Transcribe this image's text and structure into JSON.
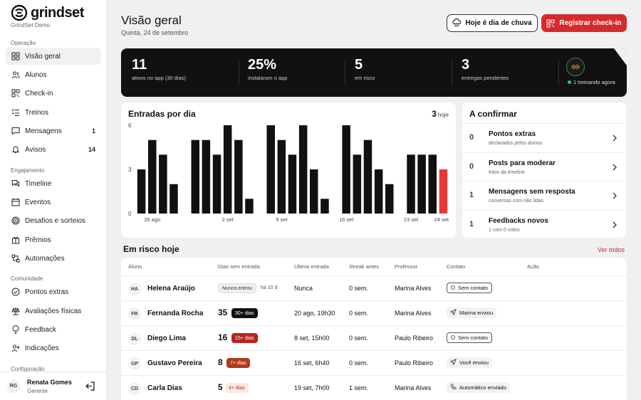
{
  "brand": {
    "name": "grindset",
    "sub": "GrindSet Demo"
  },
  "sidebar": {
    "sections": [
      "Operação",
      "Engajamento",
      "Comunidade",
      "Configuração"
    ],
    "items": [
      {
        "label": "Visão geral",
        "icon": "grid-icon"
      },
      {
        "label": "Alunos",
        "icon": "users-icon"
      },
      {
        "label": "Check-in",
        "icon": "qr-icon"
      },
      {
        "label": "Treinos",
        "icon": "list-icon"
      },
      {
        "label": "Mensagens",
        "icon": "message-icon",
        "count": "1"
      },
      {
        "label": "Avisos",
        "icon": "bell-icon",
        "count": "14"
      },
      {
        "label": "Timeline",
        "icon": "chat-icon"
      },
      {
        "label": "Eventos",
        "icon": "calendar-icon"
      },
      {
        "label": "Desafios e sorteios",
        "icon": "target-icon"
      },
      {
        "label": "Prêmios",
        "icon": "gift-icon"
      },
      {
        "label": "Automações",
        "icon": "automation-icon"
      },
      {
        "label": "Pontos extras",
        "icon": "check-circle-icon"
      },
      {
        "label": "Avaliações físicas",
        "icon": "scale-icon"
      },
      {
        "label": "Feedback",
        "icon": "bulb-icon"
      },
      {
        "label": "Indicações",
        "icon": "user-plus-icon"
      }
    ],
    "user": {
      "initials": "RG",
      "name": "Renata Gomes",
      "role": "Gerente"
    }
  },
  "header": {
    "title": "Visão geral",
    "date": "Quinta, 24 de setembro",
    "rain_button": "Hoje é dia de chuva",
    "checkin_button": "Registrar check-in"
  },
  "stats": [
    {
      "value": "11",
      "label": "ativos no app (30 dias)"
    },
    {
      "value": "25%",
      "label": "instalaram o app"
    },
    {
      "value": "5",
      "label": "em risco"
    },
    {
      "value": "3",
      "label": "entregas pendentes"
    }
  ],
  "live": {
    "label": "1 treinando agora"
  },
  "entries_chart": {
    "title": "Entradas por dia",
    "today_value": "3",
    "today_label": "hoje"
  },
  "chart_data": {
    "type": "bar",
    "ylim": [
      0,
      6
    ],
    "yticks": [
      "0",
      "3",
      "6"
    ],
    "xtick_labels": [
      "26 ago",
      "2 set",
      "9 set",
      "16 set",
      "23 set",
      "24 set"
    ],
    "values": [
      3,
      5,
      4,
      2,
      0,
      5,
      5,
      4,
      6,
      5,
      1,
      0,
      6,
      5,
      4,
      6,
      3,
      1,
      0,
      6,
      4,
      5,
      3,
      2,
      0,
      4,
      4,
      4,
      3
    ],
    "highlight_color": "#e53935",
    "bar_color": "#111111"
  },
  "confirm": {
    "title": "A confirmar",
    "items": [
      {
        "count": "0",
        "title": "Pontos extras",
        "sub": "declarados pelos alunos"
      },
      {
        "count": "0",
        "title": "Posts para moderar",
        "sub": "fotos da timeline"
      },
      {
        "count": "1",
        "title": "Mensagens sem resposta",
        "sub": "conversas com não lidas"
      },
      {
        "count": "1",
        "title": "Feedbacks novos",
        "sub": "1 com 0 votos"
      }
    ]
  },
  "risk": {
    "title": "Em risco hoje",
    "see_all": "Ver todos",
    "columns": [
      "Aluno",
      "Dias sem entrada",
      "Última entrada",
      "Streak antes",
      "Professor",
      "Contato",
      "Ação"
    ],
    "rows": [
      {
        "initials": "HA",
        "name": "Helena Araújo",
        "days": "",
        "tag": "Nunca entrou",
        "tag_style": "grey",
        "since": "há 10 d",
        "last": "Nunca",
        "streak": "0 sem.",
        "prof": "Marina Alves",
        "contact": "Sem contato",
        "contact_style": "boxed",
        "contact_icon": "circle-icon"
      },
      {
        "initials": "FR",
        "name": "Fernanda Rocha",
        "days": "35",
        "tag": "30+ dias",
        "tag_style": "dark",
        "since": "",
        "last": "20 ago, 19h30",
        "streak": "0 sem.",
        "prof": "Marina Alves",
        "contact": "Marina enviou",
        "contact_style": "pill",
        "contact_icon": "send-icon"
      },
      {
        "initials": "DL",
        "name": "Diego Lima",
        "days": "16",
        "tag": "15+ dias",
        "tag_style": "red",
        "since": "",
        "last": "8 set, 15h00",
        "streak": "0 sem.",
        "prof": "Paulo Ribeiro",
        "contact": "Sem contato",
        "contact_style": "boxed",
        "contact_icon": "circle-icon"
      },
      {
        "initials": "GP",
        "name": "Gustavo Pereira",
        "days": "8",
        "tag": "7+ dias",
        "tag_style": "brown",
        "since": "",
        "last": "16 set, 6h40",
        "streak": "0 sem.",
        "prof": "Paulo Ribeiro",
        "contact": "Você enviou",
        "contact_style": "pill",
        "contact_icon": "send-icon"
      },
      {
        "initials": "CD",
        "name": "Carla Dias",
        "days": "5",
        "tag": "4+ dias",
        "tag_style": "light",
        "since": "",
        "last": "19 set, 7h00",
        "streak": "1 sem.",
        "prof": "Marina Alves",
        "contact": "Automático enviado",
        "contact_style": "pill",
        "contact_icon": "phone-icon"
      }
    ]
  }
}
